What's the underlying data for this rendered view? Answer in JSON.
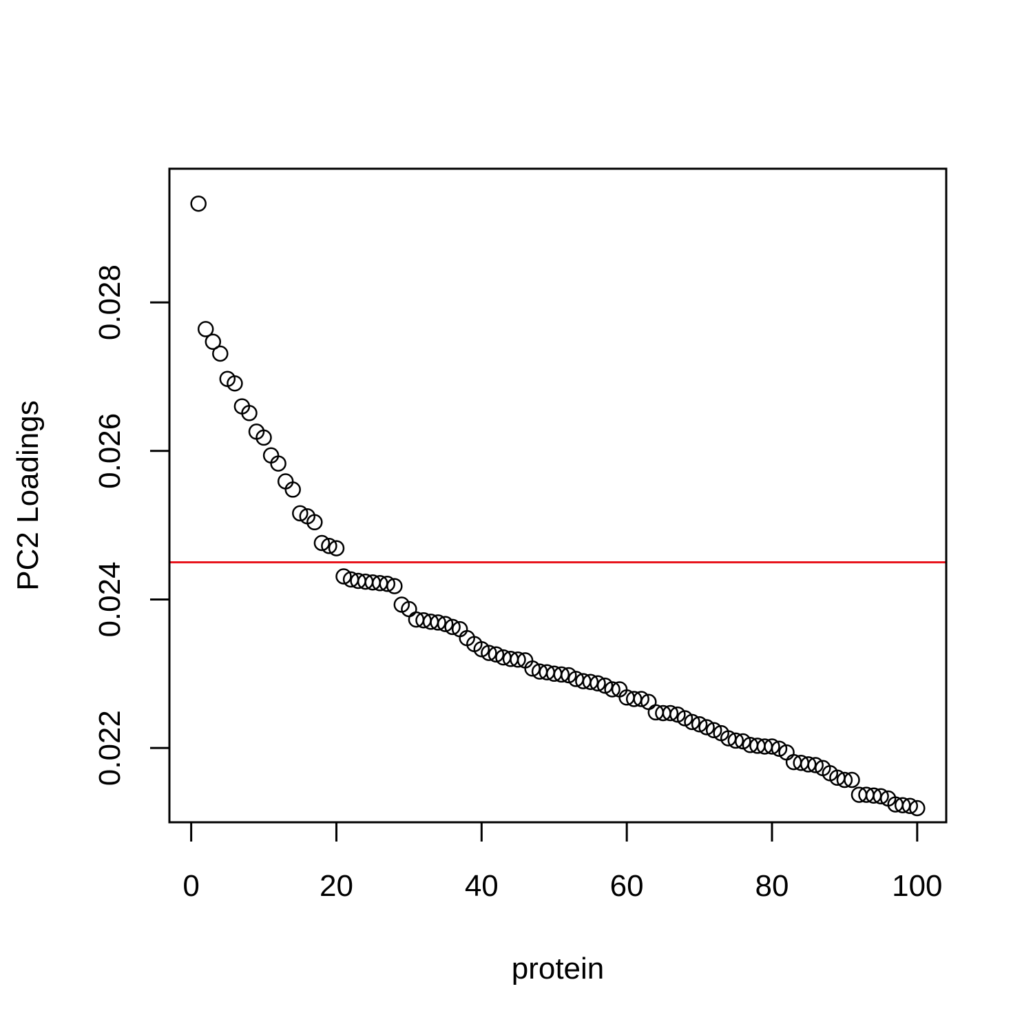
{
  "chart_data": {
    "type": "scatter",
    "title": "",
    "xlabel": "protein",
    "ylabel": "PC2 Loadings",
    "xlim": [
      -3,
      104
    ],
    "ylim": [
      0.021,
      0.0298
    ],
    "xticks": [
      "0",
      "20",
      "40",
      "60",
      "80",
      "100"
    ],
    "yticks": [
      "0.022",
      "0.024",
      "0.026",
      "0.028"
    ],
    "marker": "open-circle",
    "grid": false,
    "legend": "none",
    "colors": {
      "points": "#000000",
      "threshold_line": "#e8131b",
      "axes": "#000000"
    },
    "threshold": 0.0245,
    "points": [
      [
        1,
        0.02933
      ],
      [
        2,
        0.02764
      ],
      [
        3,
        0.02747
      ],
      [
        4,
        0.02731
      ],
      [
        5,
        0.02697
      ],
      [
        6,
        0.02691
      ],
      [
        7,
        0.0266
      ],
      [
        8,
        0.02651
      ],
      [
        9,
        0.02626
      ],
      [
        10,
        0.02618
      ],
      [
        11,
        0.02594
      ],
      [
        12,
        0.02583
      ],
      [
        13,
        0.02559
      ],
      [
        14,
        0.02548
      ],
      [
        15,
        0.02516
      ],
      [
        16,
        0.02512
      ],
      [
        17,
        0.02504
      ],
      [
        18,
        0.02476
      ],
      [
        19,
        0.02472
      ],
      [
        20,
        0.02469
      ],
      [
        21,
        0.02431
      ],
      [
        22,
        0.02427
      ],
      [
        23,
        0.02425
      ],
      [
        24,
        0.02424
      ],
      [
        25,
        0.02423
      ],
      [
        26,
        0.02422
      ],
      [
        27,
        0.02421
      ],
      [
        28,
        0.02418
      ],
      [
        29,
        0.02393
      ],
      [
        30,
        0.02387
      ],
      [
        31,
        0.02373
      ],
      [
        32,
        0.02372
      ],
      [
        33,
        0.0237
      ],
      [
        34,
        0.02369
      ],
      [
        35,
        0.02367
      ],
      [
        36,
        0.02363
      ],
      [
        37,
        0.0236
      ],
      [
        38,
        0.02348
      ],
      [
        39,
        0.0234
      ],
      [
        40,
        0.02333
      ],
      [
        41,
        0.02328
      ],
      [
        42,
        0.02326
      ],
      [
        43,
        0.02322
      ],
      [
        44,
        0.0232
      ],
      [
        45,
        0.02319
      ],
      [
        46,
        0.02318
      ],
      [
        47,
        0.02307
      ],
      [
        48,
        0.02303
      ],
      [
        49,
        0.02302
      ],
      [
        50,
        0.023
      ],
      [
        51,
        0.02299
      ],
      [
        52,
        0.02298
      ],
      [
        53,
        0.02293
      ],
      [
        54,
        0.0229
      ],
      [
        55,
        0.02289
      ],
      [
        56,
        0.02287
      ],
      [
        57,
        0.02284
      ],
      [
        58,
        0.02279
      ],
      [
        59,
        0.02279
      ],
      [
        60,
        0.02268
      ],
      [
        61,
        0.02266
      ],
      [
        62,
        0.02266
      ],
      [
        63,
        0.02262
      ],
      [
        64,
        0.02248
      ],
      [
        65,
        0.02247
      ],
      [
        66,
        0.02247
      ],
      [
        67,
        0.02245
      ],
      [
        68,
        0.0224
      ],
      [
        69,
        0.02235
      ],
      [
        70,
        0.02232
      ],
      [
        71,
        0.02228
      ],
      [
        72,
        0.02224
      ],
      [
        73,
        0.0222
      ],
      [
        74,
        0.02213
      ],
      [
        75,
        0.0221
      ],
      [
        76,
        0.02209
      ],
      [
        77,
        0.02204
      ],
      [
        78,
        0.02203
      ],
      [
        79,
        0.02202
      ],
      [
        80,
        0.02202
      ],
      [
        81,
        0.02199
      ],
      [
        82,
        0.02194
      ],
      [
        83,
        0.02181
      ],
      [
        84,
        0.0218
      ],
      [
        85,
        0.02178
      ],
      [
        86,
        0.02177
      ],
      [
        87,
        0.02173
      ],
      [
        88,
        0.02166
      ],
      [
        89,
        0.0216
      ],
      [
        90,
        0.02157
      ],
      [
        91,
        0.02157
      ],
      [
        92,
        0.02137
      ],
      [
        93,
        0.02137
      ],
      [
        94,
        0.02136
      ],
      [
        95,
        0.02135
      ],
      [
        96,
        0.02132
      ],
      [
        97,
        0.02124
      ],
      [
        98,
        0.02123
      ],
      [
        99,
        0.02122
      ],
      [
        100,
        0.02119
      ]
    ]
  }
}
